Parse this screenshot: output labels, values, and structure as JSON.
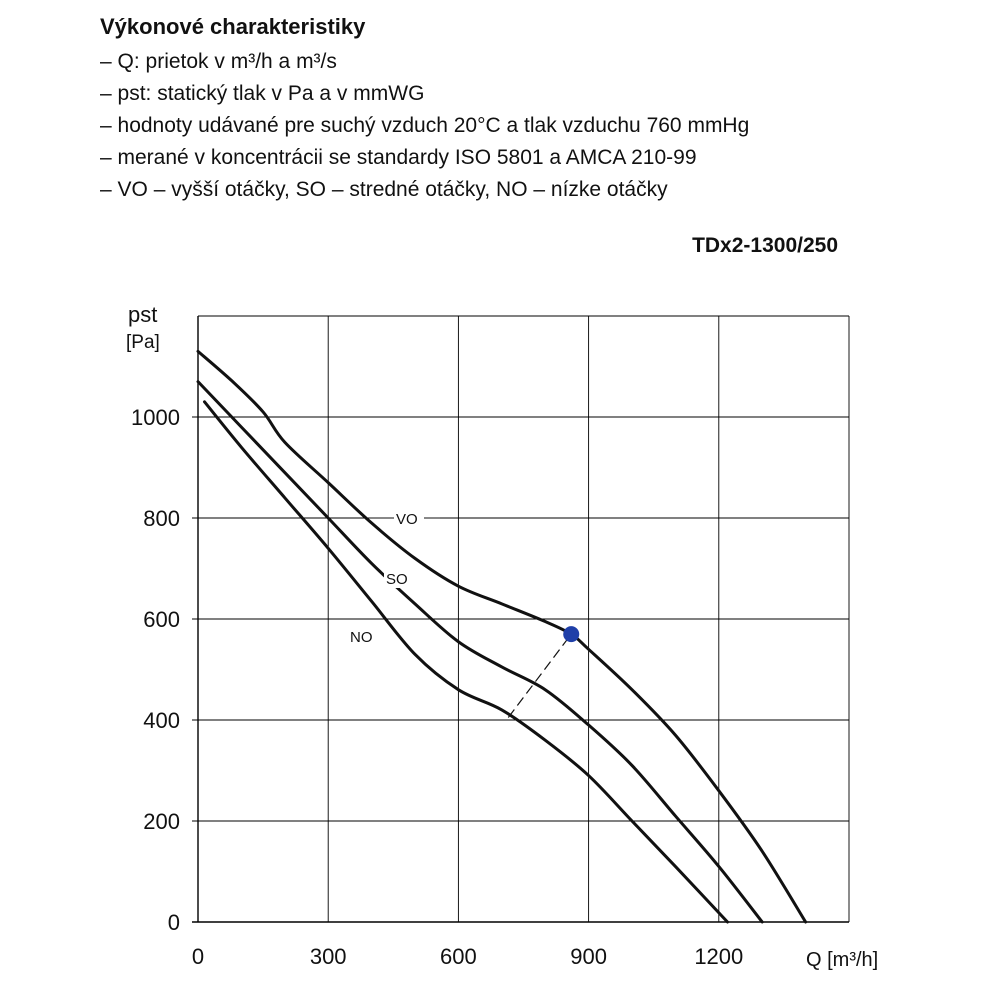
{
  "header": {
    "title": "Výkonové charakteristiky",
    "bullets": [
      "– Q: prietok v m³/h a m³/s",
      "– pst: statický tlak v Pa a v mmWG",
      "– hodnoty udávané  pre suchý vzduch 20°C a tlak vzduchu 760 mmHg",
      "– merané v koncentrácii se standardy ISO 5801 a AMCA 210-99",
      "– VO – vyšší otáčky, SO – stredné otáčky, NO – nízke otáčky"
    ],
    "model": "TDx2-1300/250"
  },
  "colors": {
    "curve": "#111111",
    "grid": "#000000",
    "marker": "#1f3fa8"
  },
  "chart_data": {
    "type": "line",
    "xlabel": "Q [m³/h]",
    "ylabel_symbol": "pst",
    "ylabel_unit": "[Pa]",
    "xlim": [
      0,
      1500
    ],
    "ylim": [
      0,
      1200
    ],
    "xticks": [
      0,
      300,
      600,
      900,
      1200
    ],
    "yticks": [
      0,
      200,
      400,
      600,
      800,
      1000
    ],
    "grid": true,
    "series": [
      {
        "name": "VO",
        "x": [
          0,
          80,
          150,
          200,
          300,
          400,
          500,
          600,
          700,
          800,
          860,
          900,
          1000,
          1100,
          1200,
          1300,
          1400
        ],
        "y": [
          1130,
          1070,
          1010,
          950,
          870,
          790,
          720,
          665,
          630,
          595,
          570,
          540,
          460,
          370,
          260,
          140,
          0
        ]
      },
      {
        "name": "SO",
        "x": [
          0,
          100,
          200,
          300,
          400,
          500,
          600,
          700,
          800,
          900,
          1000,
          1100,
          1200,
          1300
        ],
        "y": [
          1070,
          980,
          890,
          800,
          710,
          630,
          555,
          505,
          460,
          390,
          310,
          210,
          110,
          0
        ]
      },
      {
        "name": "NO",
        "x": [
          15,
          100,
          200,
          300,
          400,
          500,
          600,
          700,
          800,
          900,
          1000,
          1100,
          1220
        ],
        "y": [
          1030,
          940,
          840,
          740,
          635,
          530,
          460,
          420,
          360,
          290,
          200,
          110,
          0
        ]
      }
    ],
    "annotations": [
      {
        "type": "marker",
        "x": 860,
        "y": 570
      },
      {
        "type": "dashed-line",
        "x": [
          715,
          860
        ],
        "y": [
          405,
          570
        ]
      }
    ]
  }
}
